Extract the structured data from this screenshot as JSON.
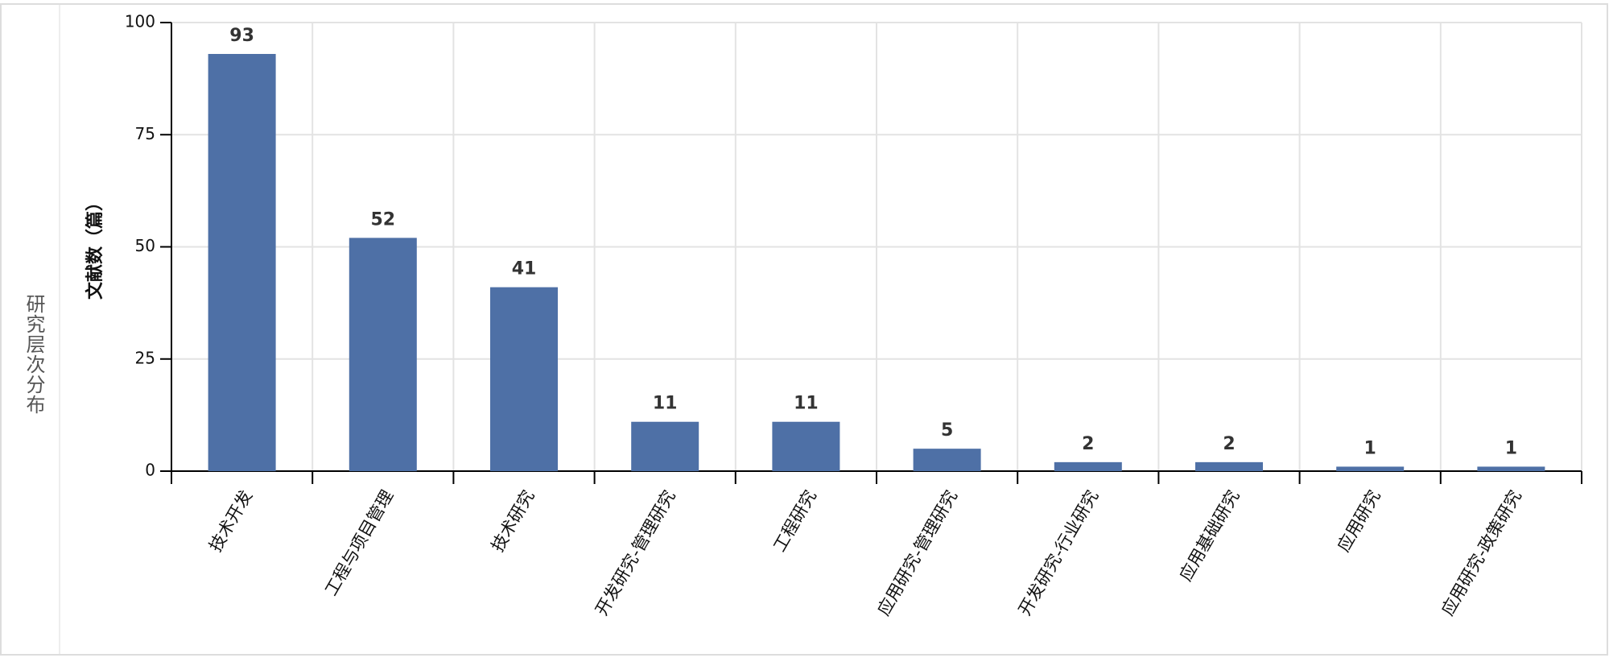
{
  "chart_data": {
    "type": "bar",
    "title": "研究层次分布",
    "y_label": "文献数（篇）",
    "categories": [
      "技术开发",
      "工程与项目管理",
      "技术研究",
      "开发研究-管理研究",
      "工程研究",
      "应用研究-管理研究",
      "开发研究-行业研究",
      "应用基础研究",
      "应用研究",
      "应用研究-政策研究"
    ],
    "values": [
      93,
      52,
      41,
      11,
      11,
      5,
      2,
      2,
      1,
      1
    ],
    "color": "#4e70a6",
    "ylim": [
      0,
      100
    ],
    "yticks": [
      0,
      25,
      50,
      75,
      100
    ],
    "grid": true
  }
}
